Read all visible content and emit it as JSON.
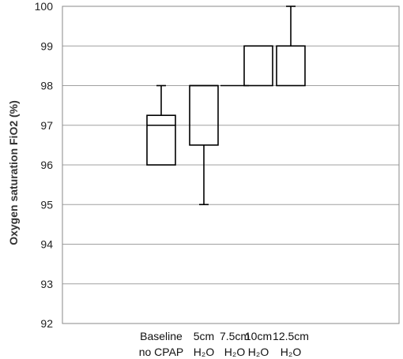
{
  "chart_data": {
    "type": "box",
    "title": "",
    "xlabel": "",
    "ylabel": "Oxygen saturation FiO2 (%)",
    "ylim": [
      92,
      100
    ],
    "yticks": [
      92,
      93,
      94,
      95,
      96,
      97,
      98,
      99,
      100
    ],
    "grid": true,
    "categories": [
      {
        "line1": "Baseline",
        "line2": "no CPAP"
      },
      {
        "line1": "5cm",
        "line2": "H₂O"
      },
      {
        "line1": "7.5cm",
        "line2": "H₂O"
      },
      {
        "line1": "10cm",
        "line2": "H₂O"
      },
      {
        "line1": "12.5cm",
        "line2": "H₂O"
      }
    ],
    "boxes": [
      {
        "whisker_low": 96,
        "q1": 96,
        "median": 97,
        "q3": 97.25,
        "whisker_high": 98
      },
      {
        "whisker_low": 95,
        "q1": 96.5,
        "median": 98,
        "q3": 98,
        "whisker_high": 98
      },
      {
        "whisker_low": 98,
        "q1": 98,
        "median": 98,
        "q3": 98,
        "whisker_high": 98
      },
      {
        "whisker_low": 98,
        "q1": 98,
        "median": 99,
        "q3": 99,
        "whisker_high": 99
      },
      {
        "whisker_low": 98,
        "q1": 98,
        "median": 99,
        "q3": 99,
        "whisker_high": 100
      }
    ],
    "colors": {
      "grid": "#a0a0a0",
      "box": "#000000",
      "frame": "#888888"
    }
  }
}
